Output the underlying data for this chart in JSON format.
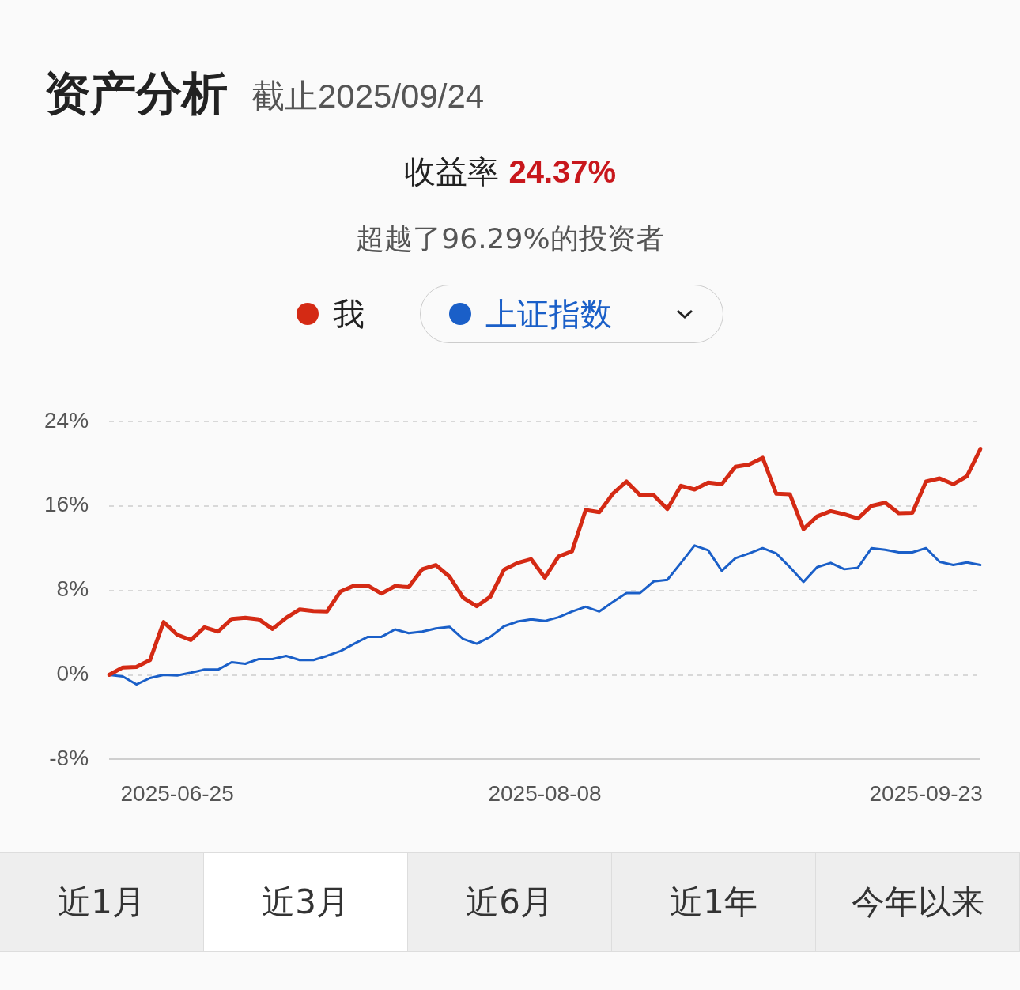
{
  "chart_data": {
    "type": "line",
    "title": "资产分析",
    "subtitle": "截止2025/09/24",
    "annotations": [
      "收益率 24.37%",
      "超越了96.29%的投资者",
      "近1月",
      "近3月",
      "近6月",
      "近1年",
      "今年以来"
    ],
    "categories": [
      null,
      null,
      null,
      null,
      null,
      "2025-06-25",
      null,
      null,
      null,
      null,
      null,
      null,
      null,
      null,
      null,
      null,
      null,
      null,
      null,
      null,
      null,
      null,
      null,
      null,
      null,
      null,
      null,
      null,
      null,
      null,
      null,
      null,
      "2025-08-08",
      null,
      null,
      null,
      null,
      null,
      null,
      null,
      null,
      null,
      null,
      null,
      null,
      null,
      null,
      null,
      null,
      null,
      null,
      null,
      null,
      null,
      null,
      null,
      null,
      null,
      null,
      null,
      "2025-09-23",
      null,
      null,
      null,
      null
    ],
    "series": [
      {
        "name": "我",
        "color": "#d42a14",
        "values": [
          0,
          0.7,
          0.75,
          1.4,
          5.0,
          3.8,
          3.3,
          4.5,
          4.1,
          5.3,
          5.4,
          5.25,
          4.35,
          5.4,
          6.2,
          6.05,
          6.0,
          7.9,
          8.45,
          8.45,
          7.7,
          8.4,
          8.3,
          10.0,
          10.4,
          9.3,
          7.3,
          6.5,
          7.4,
          9.95,
          10.6,
          10.95,
          9.2,
          11.2,
          11.7,
          15.6,
          15.4,
          17.15,
          18.3,
          17.0,
          17.0,
          15.7,
          17.9,
          17.55,
          18.2,
          18.05,
          19.7,
          19.9,
          20.55,
          17.15,
          17.1,
          13.8,
          15.0,
          15.5,
          15.2,
          14.8,
          16.0,
          16.3,
          15.3,
          15.35,
          18.3,
          18.6,
          18.05,
          18.8,
          21.4
        ]
      },
      {
        "name": "上证指数",
        "color": "#1a5fc8",
        "values": [
          0,
          -0.15,
          -0.9,
          -0.3,
          0,
          -0.05,
          0.2,
          0.5,
          0.5,
          1.2,
          1.05,
          1.5,
          1.5,
          1.8,
          1.4,
          1.4,
          1.8,
          2.25,
          2.95,
          3.6,
          3.6,
          4.3,
          3.95,
          4.1,
          4.4,
          4.55,
          3.4,
          2.95,
          3.6,
          4.6,
          5.05,
          5.25,
          5.1,
          5.45,
          6.0,
          6.45,
          6.0,
          6.9,
          7.75,
          7.75,
          8.85,
          9.0,
          10.6,
          12.25,
          11.8,
          9.85,
          11.05,
          11.5,
          12.0,
          11.5,
          10.2,
          8.8,
          10.2,
          10.6,
          10.0,
          10.15,
          12.0,
          11.85,
          11.6,
          11.6,
          12.0,
          10.7,
          10.4,
          10.65,
          10.4
        ]
      }
    ],
    "ylim": [
      -8,
      24
    ],
    "yticks": [
      {
        "value": -8,
        "label": "-8%"
      },
      {
        "value": 0,
        "label": "0%"
      },
      {
        "value": 8,
        "label": "8%"
      },
      {
        "value": 16,
        "label": "16%"
      },
      {
        "value": 24,
        "label": "24%"
      }
    ],
    "grid": "y",
    "legend": "top",
    "marker": "none",
    "line_style": "solid"
  }
}
